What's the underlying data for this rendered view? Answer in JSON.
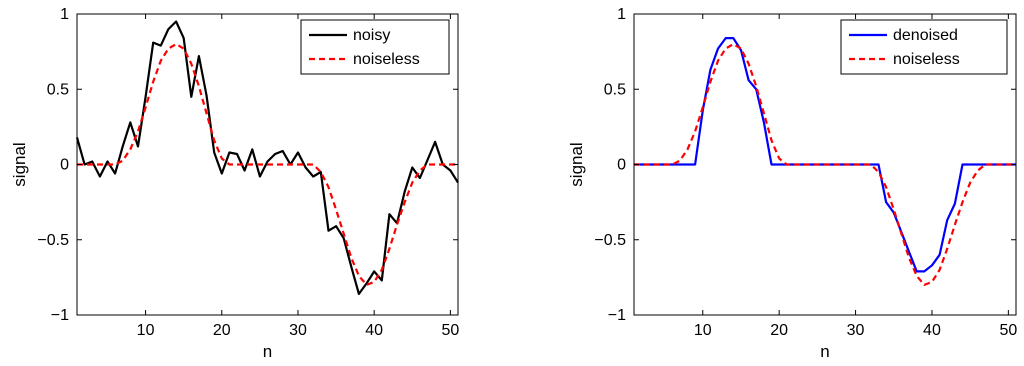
{
  "chart_data": [
    {
      "type": "line",
      "xlabel": "n",
      "ylabel": "signal",
      "xlim": [
        1,
        51
      ],
      "ylim": [
        -1,
        1
      ],
      "xticks": [
        10,
        20,
        30,
        40,
        50
      ],
      "yticks": [
        1,
        0.5,
        0,
        -0.5,
        -1
      ],
      "ytick_labels": [
        "1",
        "0.5",
        "0",
        "−0.5",
        "−1"
      ],
      "grid": false,
      "legend_position": "top-right",
      "series": [
        {
          "name": "noisy",
          "color": "#000000",
          "style": "solid",
          "x": [
            1,
            2,
            3,
            4,
            5,
            6,
            7,
            8,
            9,
            10,
            11,
            12,
            13,
            14,
            15,
            16,
            17,
            18,
            19,
            20,
            21,
            22,
            23,
            24,
            25,
            26,
            27,
            28,
            29,
            30,
            31,
            32,
            33,
            34,
            35,
            36,
            37,
            38,
            39,
            40,
            41,
            42,
            43,
            44,
            45,
            46,
            47,
            48,
            49,
            50,
            51
          ],
          "values": [
            0.18,
            0.0,
            0.02,
            -0.08,
            0.02,
            -0.06,
            0.12,
            0.28,
            0.12,
            0.45,
            0.81,
            0.79,
            0.9,
            0.95,
            0.84,
            0.45,
            0.72,
            0.46,
            0.08,
            -0.06,
            0.08,
            0.07,
            -0.04,
            0.1,
            -0.08,
            0.02,
            0.07,
            0.09,
            0.0,
            0.08,
            -0.02,
            -0.08,
            -0.05,
            -0.44,
            -0.41,
            -0.49,
            -0.68,
            -0.86,
            -0.79,
            -0.71,
            -0.77,
            -0.33,
            -0.39,
            -0.18,
            -0.02,
            -0.09,
            0.03,
            0.15,
            0.0,
            -0.04,
            -0.12
          ]
        },
        {
          "name": "noiseless",
          "color": "#ff0000",
          "style": "dashed",
          "x": [
            1,
            2,
            3,
            4,
            5,
            6,
            7,
            8,
            9,
            10,
            11,
            12,
            13,
            14,
            15,
            16,
            17,
            18,
            19,
            20,
            21,
            22,
            23,
            24,
            25,
            26,
            27,
            28,
            29,
            30,
            31,
            32,
            33,
            34,
            35,
            36,
            37,
            38,
            39,
            40,
            41,
            42,
            43,
            44,
            45,
            46,
            47,
            48,
            49,
            50,
            51
          ],
          "values": [
            0,
            0,
            0,
            0,
            0,
            0,
            0.025,
            0.1,
            0.22,
            0.38,
            0.55,
            0.69,
            0.77,
            0.8,
            0.77,
            0.67,
            0.52,
            0.34,
            0.16,
            0.04,
            0,
            0,
            0,
            0,
            0,
            0,
            0,
            0,
            0,
            0,
            0,
            0,
            -0.05,
            -0.15,
            -0.3,
            -0.46,
            -0.62,
            -0.74,
            -0.8,
            -0.78,
            -0.7,
            -0.56,
            -0.4,
            -0.25,
            -0.12,
            -0.04,
            0,
            0,
            0,
            0,
            0
          ]
        }
      ]
    },
    {
      "type": "line",
      "xlabel": "n",
      "ylabel": "signal",
      "xlim": [
        1,
        51
      ],
      "ylim": [
        -1,
        1
      ],
      "xticks": [
        10,
        20,
        30,
        40,
        50
      ],
      "yticks": [
        1,
        0.5,
        0,
        -0.5,
        -1
      ],
      "ytick_labels": [
        "1",
        "0.5",
        "0",
        "−0.5",
        "−1"
      ],
      "grid": false,
      "legend_position": "top-right",
      "series": [
        {
          "name": "denoised",
          "color": "#0000ff",
          "style": "solid",
          "x": [
            1,
            2,
            3,
            4,
            5,
            6,
            7,
            8,
            9,
            10,
            11,
            12,
            13,
            14,
            15,
            16,
            17,
            18,
            19,
            20,
            21,
            22,
            23,
            24,
            25,
            26,
            27,
            28,
            29,
            30,
            31,
            32,
            33,
            34,
            35,
            36,
            37,
            38,
            39,
            40,
            41,
            42,
            43,
            44,
            45,
            46,
            47,
            48,
            49,
            50,
            51
          ],
          "values": [
            0,
            0,
            0,
            0,
            0,
            0,
            0,
            0,
            0,
            0.36,
            0.63,
            0.77,
            0.84,
            0.84,
            0.76,
            0.56,
            0.5,
            0.28,
            0,
            0,
            0,
            0,
            0,
            0,
            0,
            0,
            0,
            0,
            0,
            0,
            0,
            0,
            0,
            -0.25,
            -0.32,
            -0.45,
            -0.58,
            -0.71,
            -0.71,
            -0.67,
            -0.6,
            -0.37,
            -0.26,
            0,
            0,
            0,
            0,
            0,
            0,
            0,
            0
          ]
        },
        {
          "name": "noiseless",
          "color": "#ff0000",
          "style": "dashed",
          "x": [
            1,
            2,
            3,
            4,
            5,
            6,
            7,
            8,
            9,
            10,
            11,
            12,
            13,
            14,
            15,
            16,
            17,
            18,
            19,
            20,
            21,
            22,
            23,
            24,
            25,
            26,
            27,
            28,
            29,
            30,
            31,
            32,
            33,
            34,
            35,
            36,
            37,
            38,
            39,
            40,
            41,
            42,
            43,
            44,
            45,
            46,
            47,
            48,
            49,
            50,
            51
          ],
          "values": [
            0,
            0,
            0,
            0,
            0,
            0,
            0.025,
            0.1,
            0.22,
            0.38,
            0.55,
            0.69,
            0.77,
            0.8,
            0.77,
            0.67,
            0.52,
            0.34,
            0.16,
            0.04,
            0,
            0,
            0,
            0,
            0,
            0,
            0,
            0,
            0,
            0,
            0,
            0,
            -0.05,
            -0.15,
            -0.3,
            -0.46,
            -0.62,
            -0.74,
            -0.8,
            -0.78,
            -0.7,
            -0.56,
            -0.4,
            -0.25,
            -0.12,
            -0.04,
            0,
            0,
            0,
            0,
            0
          ]
        }
      ]
    }
  ]
}
